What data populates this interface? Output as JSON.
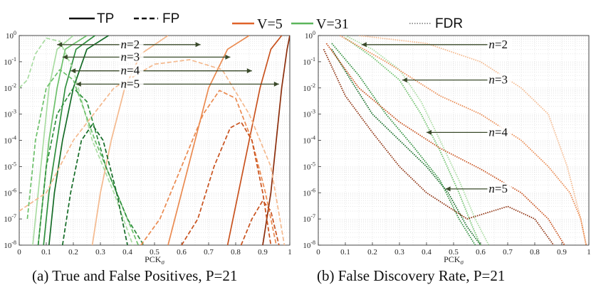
{
  "legend": {
    "tp": "TP",
    "fp": "FP",
    "v5": "V=5",
    "v31": "V=31",
    "fdr": "FDR"
  },
  "colors": {
    "v5": "#e0632a",
    "v31": "#3fa24a",
    "v5_light": "#f4b98e",
    "v31_light": "#a9dca2",
    "arrow": "#3a4a2a",
    "grid": "#cfcfcf"
  },
  "captions": {
    "a": "(a) True and False Positives, P=21",
    "b": "(b) False Discovery Rate, P=21"
  },
  "chart_data": [
    {
      "type": "line",
      "title": "(a) True and False Positives, P=21",
      "xlabel": "PCKσ",
      "ylabel": "",
      "xlim": [
        0,
        1
      ],
      "ylim": [
        1e-08,
        1
      ],
      "yscale": "log",
      "grid": true,
      "x_ticks": [
        "0",
        "0.1",
        "0.2",
        "0.3",
        "0.4",
        "0.5",
        "0.6",
        "0.7",
        "0.8",
        "0.9",
        "1"
      ],
      "y_ticks": [
        "10-8",
        "10-7",
        "10-6",
        "10-5",
        "10-4",
        "10-3",
        "10-2",
        "10-1",
        "100"
      ],
      "annotations": [
        "n=2",
        "n=3",
        "n=4",
        "n=5"
      ],
      "series": [
        {
          "kind": "TP",
          "V": 31,
          "n": 2,
          "color": "#a9dca2",
          "style": "solid",
          "points": [
            [
              0.05,
              1e-08
            ],
            [
              0.07,
              1e-06
            ],
            [
              0.09,
              0.0001
            ],
            [
              0.11,
              0.01
            ],
            [
              0.14,
              0.3
            ],
            [
              0.2,
              1
            ]
          ]
        },
        {
          "kind": "TP",
          "V": 31,
          "n": 3,
          "color": "#6cc06a",
          "style": "solid",
          "points": [
            [
              0.07,
              1e-08
            ],
            [
              0.09,
              1e-06
            ],
            [
              0.11,
              0.0001
            ],
            [
              0.14,
              0.01
            ],
            [
              0.17,
              0.3
            ],
            [
              0.25,
              1
            ]
          ]
        },
        {
          "kind": "TP",
          "V": 31,
          "n": 4,
          "color": "#2f8f3d",
          "style": "solid",
          "points": [
            [
              0.09,
              1e-08
            ],
            [
              0.11,
              1e-06
            ],
            [
              0.14,
              0.0001
            ],
            [
              0.17,
              0.01
            ],
            [
              0.21,
              0.3
            ],
            [
              0.28,
              1
            ]
          ]
        },
        {
          "kind": "TP",
          "V": 31,
          "n": 5,
          "color": "#146b26",
          "style": "solid",
          "points": [
            [
              0.11,
              1e-08
            ],
            [
              0.13,
              1e-06
            ],
            [
              0.16,
              0.0001
            ],
            [
              0.2,
              0.01
            ],
            [
              0.25,
              0.3
            ],
            [
              0.33,
              1
            ]
          ]
        },
        {
          "kind": "TP",
          "V": 5,
          "n": 2,
          "color": "#f4b98e",
          "style": "solid",
          "points": [
            [
              0.27,
              1e-08
            ],
            [
              0.3,
              1e-06
            ],
            [
              0.34,
              0.0001
            ],
            [
              0.39,
              0.01
            ],
            [
              0.45,
              0.2
            ],
            [
              0.55,
              1
            ]
          ]
        },
        {
          "kind": "TP",
          "V": 5,
          "n": 3,
          "color": "#ea8a50",
          "style": "solid",
          "points": [
            [
              0.55,
              1e-08
            ],
            [
              0.6,
              1e-06
            ],
            [
              0.65,
              0.0001
            ],
            [
              0.7,
              0.01
            ],
            [
              0.77,
              0.3
            ],
            [
              0.85,
              1
            ]
          ]
        },
        {
          "kind": "TP",
          "V": 5,
          "n": 4,
          "color": "#c8511d",
          "style": "solid",
          "points": [
            [
              0.77,
              1e-08
            ],
            [
              0.81,
              1e-06
            ],
            [
              0.85,
              0.0001
            ],
            [
              0.89,
              0.01
            ],
            [
              0.93,
              0.3
            ],
            [
              0.97,
              1
            ]
          ]
        },
        {
          "kind": "TP",
          "V": 5,
          "n": 5,
          "color": "#8c2e0c",
          "style": "solid",
          "points": [
            [
              0.9,
              1e-08
            ],
            [
              0.93,
              1e-06
            ],
            [
              0.95,
              0.0001
            ],
            [
              0.97,
              0.01
            ],
            [
              0.99,
              0.3
            ],
            [
              1,
              1
            ]
          ]
        },
        {
          "kind": "FP",
          "V": 31,
          "n": 2,
          "color": "#a9dca2",
          "style": "dashed",
          "points": [
            [
              0,
              0.01
            ],
            [
              0.03,
              0.02
            ],
            [
              0.06,
              0.2
            ],
            [
              0.1,
              0.8
            ],
            [
              0.15,
              0.6
            ],
            [
              0.2,
              0.05
            ],
            [
              0.27,
              0.0001
            ],
            [
              0.35,
              1e-06
            ],
            [
              0.42,
              1e-08
            ]
          ]
        },
        {
          "kind": "FP",
          "V": 31,
          "n": 3,
          "color": "#6cc06a",
          "style": "dashed",
          "points": [
            [
              0.03,
              1e-07
            ],
            [
              0.06,
              0.0001
            ],
            [
              0.1,
              0.01
            ],
            [
              0.15,
              0.05
            ],
            [
              0.2,
              0.02
            ],
            [
              0.28,
              0.0001
            ],
            [
              0.36,
              1e-06
            ],
            [
              0.44,
              1e-08
            ]
          ]
        },
        {
          "kind": "FP",
          "V": 31,
          "n": 4,
          "color": "#2f8f3d",
          "style": "dashed",
          "points": [
            [
              0.07,
              1e-08
            ],
            [
              0.1,
              1e-05
            ],
            [
              0.14,
              0.001
            ],
            [
              0.2,
              0.01
            ],
            [
              0.25,
              0.003
            ],
            [
              0.32,
              1e-05
            ],
            [
              0.4,
              1e-07
            ],
            [
              0.46,
              1e-08
            ]
          ]
        },
        {
          "kind": "FP",
          "V": 31,
          "n": 5,
          "color": "#146b26",
          "style": "dashed",
          "points": [
            [
              0.16,
              1e-08
            ],
            [
              0.19,
              1e-06
            ],
            [
              0.23,
              0.0001
            ],
            [
              0.27,
              0.0004
            ],
            [
              0.31,
              0.0001
            ],
            [
              0.36,
              1e-06
            ],
            [
              0.4,
              1e-08
            ]
          ]
        },
        {
          "kind": "FP",
          "V": 5,
          "n": 2,
          "color": "#f4b98e",
          "style": "dashed",
          "points": [
            [
              0,
              2e-07
            ],
            [
              0.1,
              1e-06
            ],
            [
              0.2,
              0.0001
            ],
            [
              0.35,
              0.01
            ],
            [
              0.5,
              0.08
            ],
            [
              0.63,
              0.12
            ],
            [
              0.75,
              0.05
            ],
            [
              0.85,
              0.001
            ],
            [
              0.93,
              1e-05
            ],
            [
              0.98,
              1e-08
            ]
          ]
        },
        {
          "kind": "FP",
          "V": 5,
          "n": 3,
          "color": "#ea8a50",
          "style": "dashed",
          "points": [
            [
              0.45,
              1e-08
            ],
            [
              0.52,
              1e-07
            ],
            [
              0.6,
              1e-05
            ],
            [
              0.68,
              0.001
            ],
            [
              0.74,
              0.008
            ],
            [
              0.8,
              0.004
            ],
            [
              0.86,
              0.0001
            ],
            [
              0.91,
              1e-06
            ],
            [
              0.95,
              1e-08
            ]
          ]
        },
        {
          "kind": "FP",
          "V": 5,
          "n": 4,
          "color": "#c8511d",
          "style": "dashed",
          "points": [
            [
              0.6,
              1e-08
            ],
            [
              0.66,
              1e-07
            ],
            [
              0.72,
              1e-05
            ],
            [
              0.78,
              0.0003
            ],
            [
              0.82,
              0.0005
            ],
            [
              0.86,
              0.0001
            ],
            [
              0.9,
              1e-06
            ],
            [
              0.93,
              1e-08
            ]
          ]
        },
        {
          "kind": "FP",
          "V": 5,
          "n": 5,
          "color": "#c8511d",
          "style": "dashed",
          "points": [
            [
              0.82,
              1e-08
            ],
            [
              0.86,
              1e-07
            ],
            [
              0.9,
              5e-07
            ],
            [
              0.93,
              2e-07
            ],
            [
              0.96,
              1e-08
            ]
          ]
        }
      ]
    },
    {
      "type": "line",
      "title": "(b) False Discovery Rate, P=21",
      "xlabel": "PCKσ",
      "ylabel": "",
      "xlim": [
        0,
        1
      ],
      "ylim": [
        1e-08,
        1
      ],
      "yscale": "log",
      "grid": true,
      "x_ticks": [
        "0",
        "0.1",
        "0.2",
        "0.3",
        "0.4",
        "0.5",
        "0.6",
        "0.7",
        "0.8",
        "0.9",
        "1"
      ],
      "y_ticks": [
        "10-8",
        "10-7",
        "10-6",
        "10-5",
        "10-4",
        "10-3",
        "10-2",
        "10-1",
        "100"
      ],
      "annotations": [
        "n=2",
        "n=3",
        "n=4",
        "n=5"
      ],
      "series": [
        {
          "kind": "FDR",
          "V": 31,
          "n": 2,
          "color": "#a9dca2",
          "points": [
            [
              0.1,
              1
            ],
            [
              0.2,
              0.3
            ],
            [
              0.3,
              0.05
            ],
            [
              0.38,
              0.003
            ],
            [
              0.45,
              0.0001
            ],
            [
              0.52,
              3e-06
            ],
            [
              0.58,
              1e-07
            ],
            [
              0.63,
              1e-08
            ]
          ]
        },
        {
          "kind": "FDR",
          "V": 31,
          "n": 3,
          "color": "#6cc06a",
          "points": [
            [
              0.1,
              0.8
            ],
            [
              0.2,
              0.15
            ],
            [
              0.3,
              0.02
            ],
            [
              0.38,
              0.001
            ],
            [
              0.45,
              4e-05
            ],
            [
              0.52,
              1e-06
            ],
            [
              0.57,
              5e-08
            ],
            [
              0.6,
              1e-08
            ]
          ]
        },
        {
          "kind": "FDR",
          "V": 31,
          "n": 4,
          "color": "#2f8f3d",
          "points": [
            [
              0.05,
              0.5
            ],
            [
              0.15,
              0.03
            ],
            [
              0.25,
              0.001
            ],
            [
              0.35,
              6e-05
            ],
            [
              0.45,
              3e-06
            ],
            [
              0.52,
              1e-07
            ],
            [
              0.58,
              1e-08
            ]
          ]
        },
        {
          "kind": "FDR",
          "V": 31,
          "n": 5,
          "color": "#146b26",
          "points": [
            [
              0.05,
              0.3
            ],
            [
              0.12,
              0.02
            ],
            [
              0.2,
              0.001
            ],
            [
              0.3,
              0.0001
            ],
            [
              0.4,
              1e-05
            ],
            [
              0.48,
              1e-06
            ],
            [
              0.55,
              5e-08
            ],
            [
              0.6,
              1e-08
            ]
          ]
        },
        {
          "kind": "FDR",
          "V": 5,
          "n": 2,
          "color": "#f4b98e",
          "points": [
            [
              0.15,
              1
            ],
            [
              0.4,
              0.5
            ],
            [
              0.6,
              0.1
            ],
            [
              0.75,
              0.01
            ],
            [
              0.85,
              0.001
            ],
            [
              0.92,
              1e-05
            ],
            [
              0.97,
              1e-07
            ],
            [
              0.99,
              1e-08
            ]
          ]
        },
        {
          "kind": "FDR",
          "V": 5,
          "n": 3,
          "color": "#ea8a50",
          "points": [
            [
              0.08,
              1
            ],
            [
              0.25,
              0.1
            ],
            [
              0.45,
              0.005
            ],
            [
              0.6,
              0.001
            ],
            [
              0.75,
              0.0001
            ],
            [
              0.85,
              1e-05
            ],
            [
              0.93,
              1e-06
            ],
            [
              0.97,
              1e-07
            ],
            [
              0.99,
              1e-08
            ]
          ]
        },
        {
          "kind": "FDR",
          "V": 5,
          "n": 4,
          "color": "#c8511d",
          "points": [
            [
              0.03,
              0.5
            ],
            [
              0.15,
              0.01
            ],
            [
              0.3,
              0.0005
            ],
            [
              0.45,
              5e-05
            ],
            [
              0.6,
              8e-06
            ],
            [
              0.75,
              1e-06
            ],
            [
              0.85,
              1e-07
            ],
            [
              0.91,
              1e-08
            ]
          ]
        },
        {
          "kind": "FDR",
          "V": 5,
          "n": 5,
          "color": "#8c2e0c",
          "points": [
            [
              0.02,
              0.3
            ],
            [
              0.1,
              0.005
            ],
            [
              0.2,
              0.0002
            ],
            [
              0.3,
              1e-05
            ],
            [
              0.4,
              1e-06
            ],
            [
              0.55,
              1e-07
            ],
            [
              0.7,
              3e-07
            ],
            [
              0.8,
              1e-07
            ],
            [
              0.87,
              1e-08
            ]
          ]
        }
      ]
    }
  ]
}
